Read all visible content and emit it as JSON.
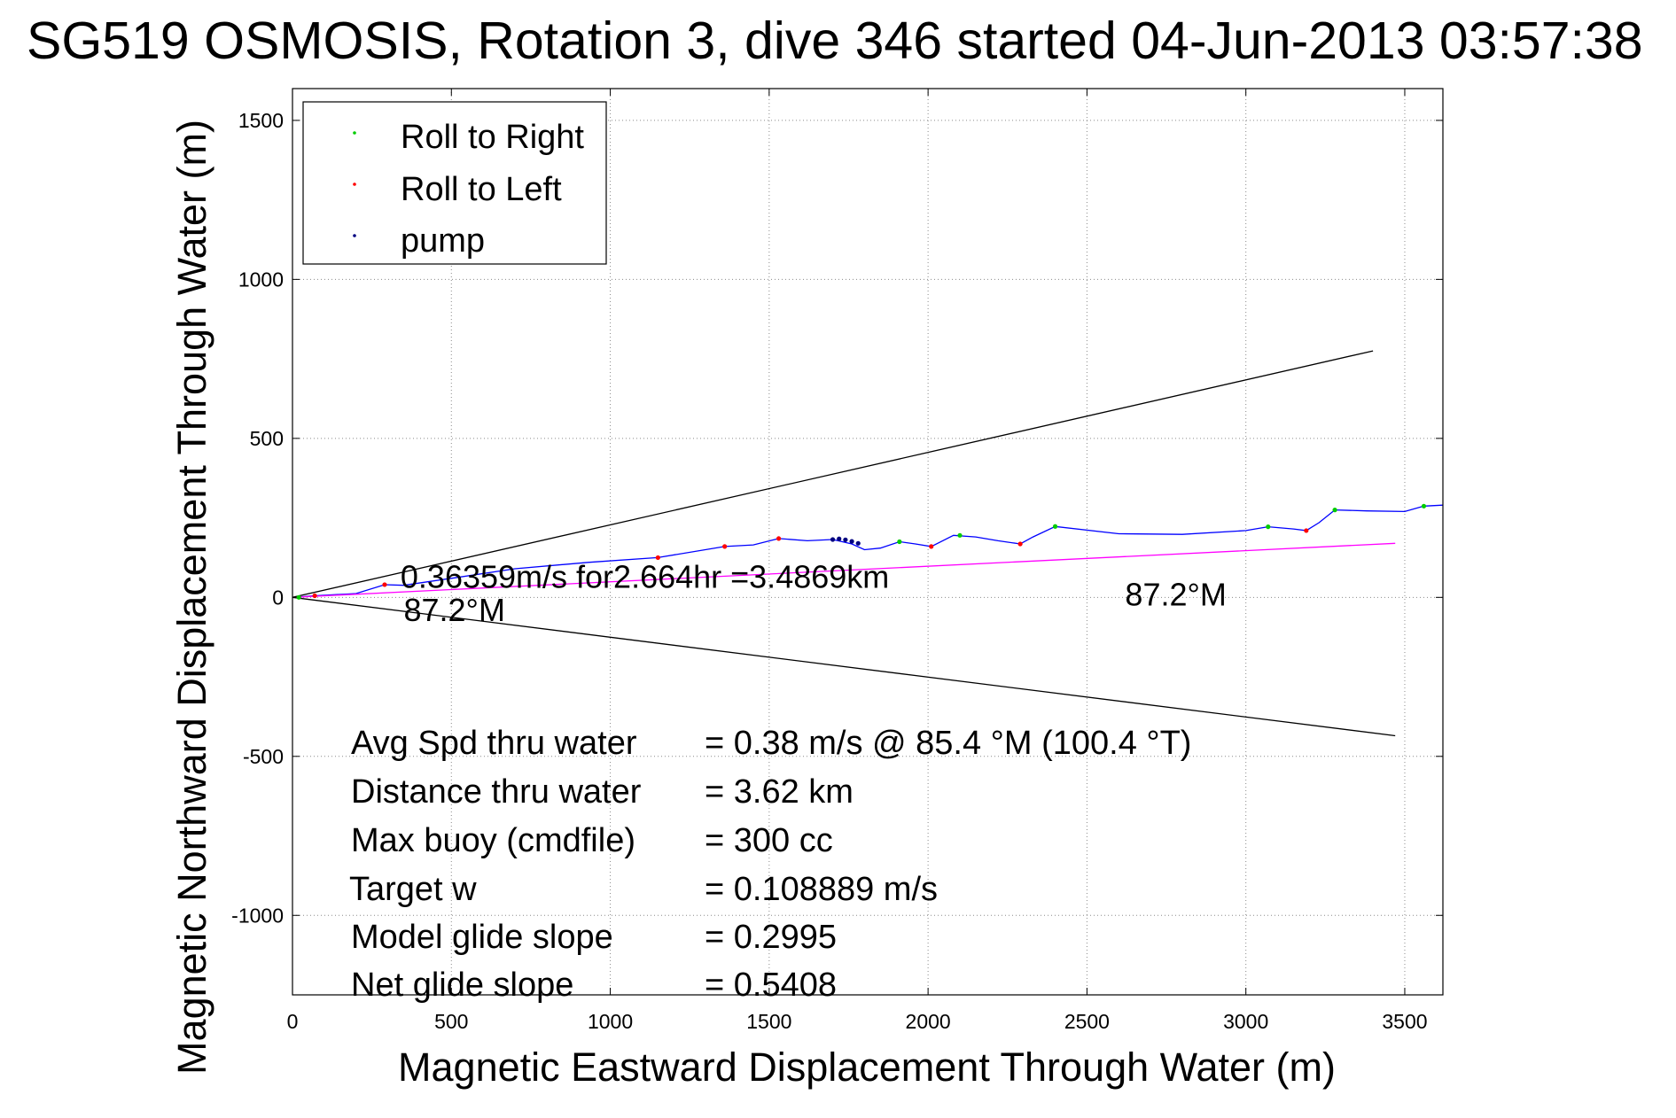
{
  "title": "SG519 OSMOSIS, Rotation 3, dive 346 started 04-Jun-2013 03:57:38",
  "chart_data": {
    "type": "line",
    "xlabel": "Magnetic Eastward Displacement Through Water (m)",
    "ylabel": "Magnetic Northward Displacement Through Water (m)",
    "xlim": [
      0,
      3620
    ],
    "ylim": [
      -1250,
      1600
    ],
    "xticks": [
      0,
      500,
      1000,
      1500,
      2000,
      2500,
      3000,
      3500
    ],
    "yticks": [
      -1000,
      -500,
      0,
      500,
      1000,
      1500
    ],
    "grid": true,
    "legend_position": "top-left",
    "legend": [
      {
        "label": "Roll to Right",
        "color": "#00cc00"
      },
      {
        "label": "Roll to Left",
        "color": "#ff0000"
      },
      {
        "label": "pump",
        "color": "#000080"
      }
    ],
    "series": [
      {
        "color": "#0000ff",
        "x": [
          0,
          70,
          200,
          290,
          350,
          500,
          700,
          930,
          1150,
          1360,
          1450,
          1530,
          1620,
          1700,
          1760,
          1800,
          1850,
          1910,
          1960,
          2010,
          2080,
          2150,
          2220,
          2290,
          2330,
          2400,
          2600,
          2800,
          3000,
          3070,
          3150,
          3190,
          3230,
          3280,
          3380,
          3500,
          3560,
          3620
        ],
        "y": [
          0,
          5,
          12,
          40,
          38,
          60,
          90,
          110,
          125,
          160,
          165,
          185,
          178,
          182,
          168,
          150,
          155,
          175,
          168,
          160,
          195,
          190,
          178,
          168,
          190,
          223,
          200,
          198,
          210,
          222,
          215,
          210,
          235,
          275,
          272,
          270,
          287,
          290
        ]
      },
      {
        "color": "#ff00ff",
        "x": [
          0,
          3470
        ],
        "y": [
          0,
          170
        ]
      },
      {
        "color": "#000000",
        "x": [
          0,
          3400
        ],
        "y": [
          0,
          775
        ]
      },
      {
        "color": "#000000",
        "x": [
          0,
          3470
        ],
        "y": [
          0,
          -435
        ]
      }
    ],
    "markers": {
      "roll_right": {
        "color": "#00cc00",
        "x": [
          20,
          1910,
          2100,
          2400,
          3070,
          3280,
          3560
        ],
        "y": [
          0,
          175,
          195,
          223,
          222,
          275,
          287
        ]
      },
      "roll_left": {
        "color": "#ff0000",
        "x": [
          70,
          290,
          1150,
          1360,
          1530,
          2010,
          2290,
          3190
        ],
        "y": [
          5,
          40,
          125,
          160,
          185,
          160,
          168,
          210
        ]
      },
      "pump": {
        "color": "#000080",
        "x": [
          1700,
          1720,
          1740,
          1760,
          1780
        ],
        "y": [
          182,
          184,
          181,
          176,
          170
        ]
      }
    },
    "annotations": [
      {
        "text": "0.36359m/s for2.664hr =3.4869km",
        "x": 340,
        "y": 30
      },
      {
        "text": "87.2°M",
        "x": 350,
        "y": -75
      },
      {
        "text": "87.2°M",
        "x": 2620,
        "y": -25
      }
    ],
    "stats": [
      {
        "label": "Avg Spd thru water",
        "value": "=  0.38 m/s @  85.4 °M (100.4 °T)"
      },
      {
        "label": "Distance thru water",
        "value": "=  3.62 km"
      },
      {
        "label": "Max buoy (cmdfile)",
        "value": "= 300 cc"
      },
      {
        "label": "Target w",
        "value": "= 0.108889 m/s"
      },
      {
        "label": "Model glide slope",
        "value": "= 0.2995"
      },
      {
        "label": "Net glide slope",
        "value": "= 0.5408"
      }
    ]
  }
}
